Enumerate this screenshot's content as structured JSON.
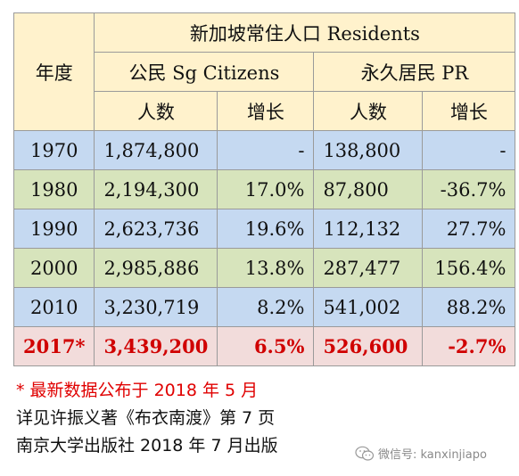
{
  "table": {
    "year_header": "年度",
    "group_header": "新加坡常住人口 Residents",
    "citizens_header": "公民 Sg Citizens",
    "pr_header": "永久居民 PR",
    "count_label": "人数",
    "growth_label": "增长",
    "rows": [
      {
        "year": "1970",
        "cit": "1,874,800",
        "cit_growth": "-",
        "pr": "138,800",
        "pr_growth": "-"
      },
      {
        "year": "1980",
        "cit": "2,194,300",
        "cit_growth": "17.0%",
        "pr": "87,800",
        "pr_growth": "-36.7%"
      },
      {
        "year": "1990",
        "cit": "2,623,736",
        "cit_growth": "19.6%",
        "pr": "112,132",
        "pr_growth": "27.7%"
      },
      {
        "year": "2000",
        "cit": "2,985,886",
        "cit_growth": "13.8%",
        "pr": "287,477",
        "pr_growth": "156.4%"
      },
      {
        "year": "2010",
        "cit": "3,230,719",
        "cit_growth": "8.2%",
        "pr": "541,002",
        "pr_growth": "88.2%"
      },
      {
        "year": "2017*",
        "cit": "3,439,200",
        "cit_growth": "6.5%",
        "pr": "526,600",
        "pr_growth": "-2.7%"
      }
    ]
  },
  "notes": {
    "line1": "* 最新数据公布于 2018 年 5 月",
    "line2": "详见许振义著《布衣南渡》第 7 页",
    "line3": "南京大学出版社 2018 年 7 月出版"
  },
  "watermark": {
    "text": "微信号: kanxinjiapo",
    "icon": "wechat-icon"
  },
  "colors": {
    "header_bg": "#fff2cc",
    "row_blue": "#c5d9f1",
    "row_green": "#d7e4bc",
    "row_highlight": "#f2dcdb",
    "highlight_text": "#d00000"
  }
}
